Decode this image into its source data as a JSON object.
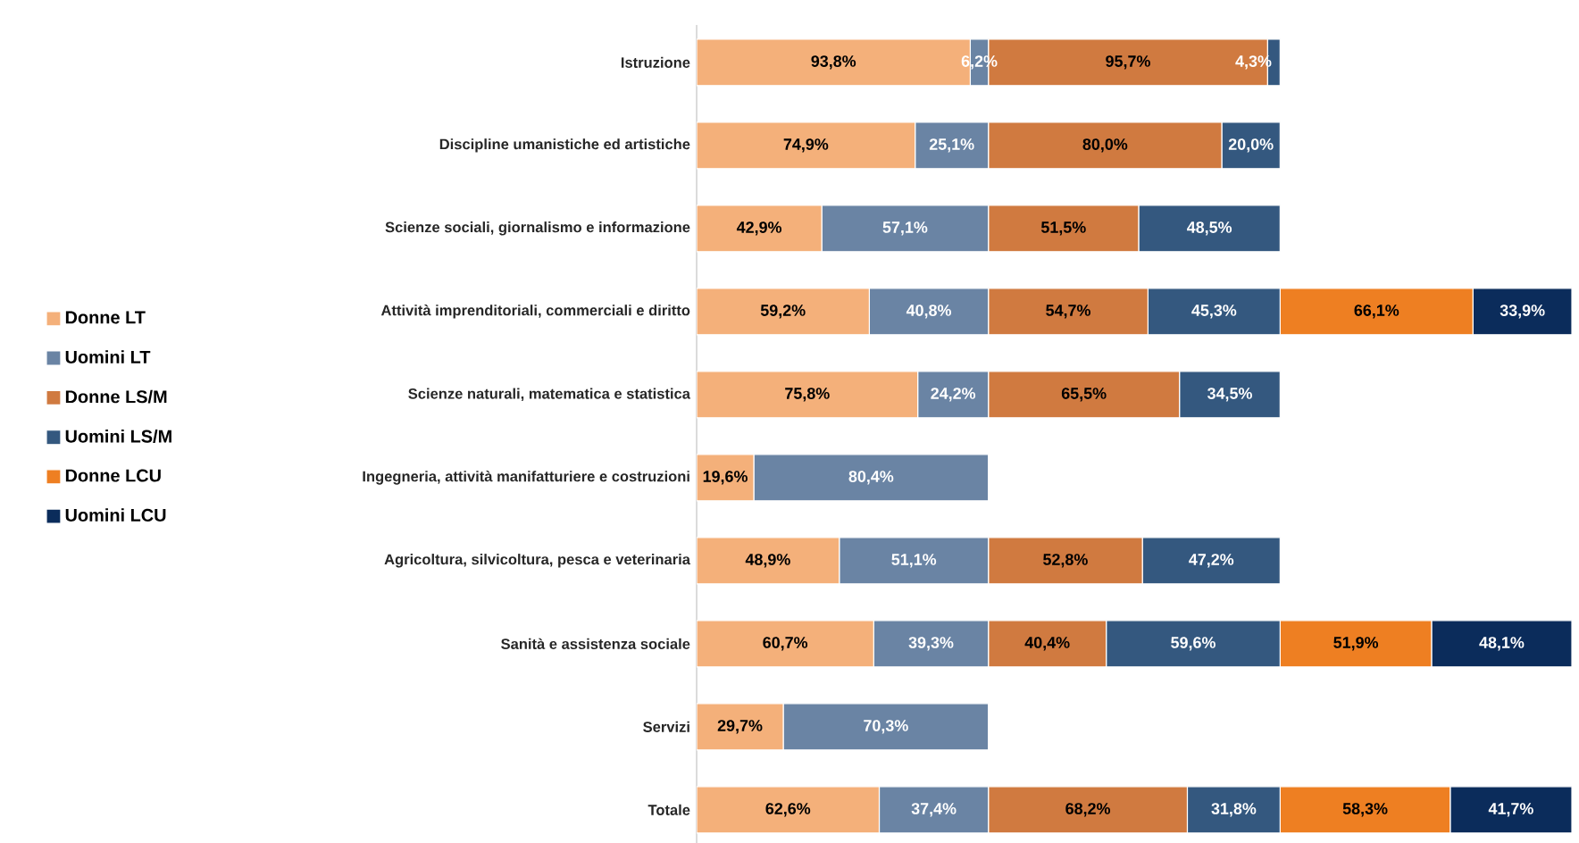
{
  "chart_data": {
    "type": "bar",
    "orientation": "horizontal",
    "stacked": true,
    "categories": [
      "Istruzione",
      "Discipline umanistiche ed artistiche",
      "Scienze sociali, giornalismo e informazione",
      "Attività imprenditoriali, commerciali e diritto",
      "Scienze naturali, matematica e statistica",
      "Ingegneria, attività manifatturiere e costruzioni",
      "Agricoltura, silvicoltura, pesca e veterinaria",
      "Sanità e assistenza sociale",
      "Servizi",
      "Totale"
    ],
    "tick_labels": "y",
    "legend": "left",
    "series": [
      {
        "name": "Donne LT",
        "color": "#f4b07a",
        "values": [
          93.8,
          74.9,
          42.9,
          59.2,
          75.8,
          19.6,
          48.9,
          60.7,
          29.7,
          62.6
        ],
        "value_labels": [
          "93,8%",
          "74,9%",
          "42,9%",
          "59,2%",
          "75,8%",
          "19,6%",
          "48,9%",
          "60,7%",
          "29,7%",
          "62,6%"
        ]
      },
      {
        "name": "Uomini LT",
        "color": "#6a84a4",
        "values": [
          6.2,
          25.1,
          57.1,
          40.8,
          24.2,
          80.4,
          51.1,
          39.3,
          70.3,
          37.4
        ],
        "value_labels": [
          "6,2%",
          "25,1%",
          "57,1%",
          "40,8%",
          "24,2%",
          "80,4%",
          "51,1%",
          "39,3%",
          "70,3%",
          "37,4%"
        ]
      },
      {
        "name": "Donne LS/M",
        "color": "#d07a40",
        "values": [
          95.7,
          80.0,
          51.5,
          54.7,
          65.5,
          null,
          52.8,
          40.4,
          null,
          68.2
        ],
        "value_labels": [
          "95,7%",
          "80,0%",
          "51,5%",
          "54,7%",
          "65,5%",
          null,
          "52,8%",
          "40,4%",
          null,
          "68,2%"
        ]
      },
      {
        "name": "Uomini LS/M",
        "color": "#34587f",
        "values": [
          4.3,
          20.0,
          48.5,
          45.3,
          34.5,
          null,
          47.2,
          59.6,
          null,
          31.8
        ],
        "value_labels": [
          "4,3%",
          "20,0%",
          "48,5%",
          "45,3%",
          "34,5%",
          null,
          "47,2%",
          "59,6%",
          null,
          "31,8%"
        ]
      },
      {
        "name": "Donne LCU",
        "color": "#ee7f22",
        "values": [
          null,
          null,
          null,
          66.1,
          null,
          null,
          null,
          51.9,
          null,
          58.3
        ],
        "value_labels": [
          null,
          null,
          null,
          "66,1%",
          null,
          null,
          null,
          "51,9%",
          null,
          "58,3%"
        ]
      },
      {
        "name": "Uomini LCU",
        "color": "#0b2c5b",
        "values": [
          null,
          null,
          null,
          33.9,
          null,
          null,
          null,
          48.1,
          null,
          41.7
        ],
        "value_labels": [
          null,
          null,
          null,
          "33,9%",
          null,
          null,
          null,
          "48,1%",
          null,
          "41,7%"
        ]
      }
    ]
  }
}
